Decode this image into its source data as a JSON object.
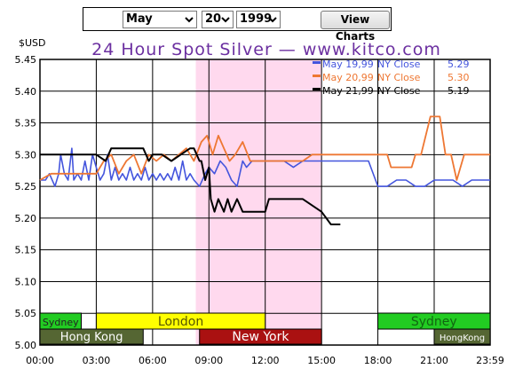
{
  "controls": {
    "month_value": "May",
    "day_value": "20",
    "year_value": "1999",
    "view_button": "View Charts"
  },
  "colors": {
    "ny_session_shade": "#ffd9ee",
    "title": "#6b2fa0",
    "series_1": "#4455dd",
    "series_2": "#ee7733",
    "series_3": "#000000",
    "sydney": "#22cc22",
    "london": "#ffff00",
    "hong_kong": "#556633",
    "new_york": "#aa1111"
  },
  "chart_data": {
    "type": "line",
    "title": "24 Hour Spot Silver — www.kitco.com",
    "ylabel": "$USD",
    "xlabel": "",
    "ylim": [
      5.0,
      5.45
    ],
    "y_ticks": [
      "5.45",
      "5.40",
      "5.35",
      "5.30",
      "5.25",
      "5.20",
      "5.15",
      "5.10",
      "5.05",
      "5.00"
    ],
    "x_ticks": [
      "00:00",
      "03:00",
      "06:00",
      "09:00",
      "12:00",
      "15:00",
      "18:00",
      "21:00",
      "23:59"
    ],
    "grid": true,
    "legend_position": "top-right",
    "legend": [
      {
        "date": "May 19,99",
        "label": "NY Close",
        "value": "5.29"
      },
      {
        "date": "May 20,99",
        "label": "NY Close",
        "value": "5.30"
      },
      {
        "date": "May 21,99",
        "label": "NY Close",
        "value": "5.19"
      }
    ],
    "series": [
      {
        "name": "May 19,99",
        "x": [
          0.0,
          0.3,
          0.5,
          0.8,
          1.0,
          1.1,
          1.3,
          1.5,
          1.7,
          1.8,
          2.0,
          2.2,
          2.4,
          2.6,
          2.8,
          3.0,
          3.2,
          3.4,
          3.6,
          3.8,
          4.0,
          4.2,
          4.4,
          4.6,
          4.8,
          5.0,
          5.2,
          5.4,
          5.6,
          5.8,
          6.0,
          6.2,
          6.4,
          6.6,
          6.8,
          7.0,
          7.2,
          7.4,
          7.6,
          7.8,
          8.0,
          8.2,
          8.5,
          8.8,
          9.0,
          9.3,
          9.6,
          9.9,
          10.2,
          10.5,
          10.8,
          11.0,
          11.3,
          11.6,
          12.0,
          12.5,
          13.0,
          13.5,
          14.0,
          14.5,
          15.0,
          15.5,
          16.0,
          16.5,
          17.0,
          17.5,
          18.0,
          18.5,
          19.0,
          19.5,
          20.0,
          20.5,
          21.0,
          21.5,
          22.0,
          22.5,
          23.0,
          23.5,
          23.98
        ],
        "values": [
          5.26,
          5.26,
          5.27,
          5.25,
          5.27,
          5.3,
          5.27,
          5.26,
          5.31,
          5.26,
          5.27,
          5.26,
          5.29,
          5.26,
          5.3,
          5.28,
          5.26,
          5.27,
          5.3,
          5.26,
          5.28,
          5.26,
          5.27,
          5.26,
          5.28,
          5.26,
          5.27,
          5.26,
          5.28,
          5.26,
          5.27,
          5.26,
          5.27,
          5.26,
          5.27,
          5.26,
          5.28,
          5.26,
          5.29,
          5.26,
          5.27,
          5.26,
          5.25,
          5.27,
          5.28,
          5.27,
          5.29,
          5.28,
          5.26,
          5.25,
          5.29,
          5.28,
          5.29,
          5.29,
          5.29,
          5.29,
          5.29,
          5.28,
          5.29,
          5.29,
          5.29,
          5.29,
          5.29,
          5.29,
          5.29,
          5.29,
          5.25,
          5.25,
          5.26,
          5.26,
          5.25,
          5.25,
          5.26,
          5.26,
          5.26,
          5.25,
          5.26,
          5.26,
          5.26
        ]
      },
      {
        "name": "May 20,99",
        "x": [
          0.0,
          0.6,
          1.0,
          2.0,
          3.0,
          3.4,
          3.8,
          4.2,
          4.6,
          5.0,
          5.4,
          5.8,
          6.2,
          6.6,
          7.0,
          7.4,
          7.8,
          8.2,
          8.6,
          8.9,
          9.2,
          9.5,
          9.8,
          10.1,
          10.4,
          10.8,
          11.2,
          12.0,
          13.0,
          14.0,
          14.5,
          15.0,
          16.0,
          17.0,
          18.0,
          18.5,
          18.7,
          19.0,
          19.5,
          19.8,
          20.0,
          20.3,
          20.8,
          21.3,
          21.6,
          21.9,
          22.2,
          22.6,
          23.0,
          23.5,
          23.98
        ],
        "values": [
          5.26,
          5.27,
          5.27,
          5.27,
          5.27,
          5.29,
          5.3,
          5.27,
          5.29,
          5.3,
          5.27,
          5.3,
          5.29,
          5.3,
          5.29,
          5.3,
          5.31,
          5.29,
          5.32,
          5.33,
          5.3,
          5.33,
          5.31,
          5.29,
          5.3,
          5.32,
          5.29,
          5.29,
          5.29,
          5.29,
          5.3,
          5.3,
          5.3,
          5.3,
          5.3,
          5.3,
          5.28,
          5.28,
          5.28,
          5.28,
          5.3,
          5.3,
          5.36,
          5.36,
          5.3,
          5.3,
          5.26,
          5.3,
          5.3,
          5.3,
          5.3
        ]
      },
      {
        "name": "May 21,99",
        "x": [
          0.0,
          1.0,
          2.0,
          3.0,
          3.5,
          3.8,
          4.0,
          5.0,
          5.5,
          5.8,
          6.0,
          6.5,
          7.0,
          7.5,
          8.0,
          8.2,
          8.5,
          8.6,
          8.8,
          9.0,
          9.1,
          9.3,
          9.5,
          9.8,
          10.0,
          10.2,
          10.5,
          10.8,
          11.0,
          11.2,
          12.0,
          12.2,
          12.5,
          13.0,
          14.0,
          15.0,
          15.5,
          16.0
        ],
        "values": [
          5.3,
          5.3,
          5.3,
          5.3,
          5.29,
          5.31,
          5.31,
          5.31,
          5.31,
          5.29,
          5.3,
          5.3,
          5.29,
          5.3,
          5.31,
          5.31,
          5.29,
          5.29,
          5.26,
          5.28,
          5.23,
          5.21,
          5.23,
          5.21,
          5.23,
          5.21,
          5.23,
          5.21,
          5.21,
          5.21,
          5.21,
          5.23,
          5.23,
          5.23,
          5.23,
          5.21,
          5.19,
          5.19
        ]
      }
    ],
    "sessions": [
      {
        "label": "Sydney",
        "row": "upper",
        "start": 0.0,
        "end": 2.2,
        "color": "#22cc22",
        "text": "#222222",
        "size": 11
      },
      {
        "label": "London",
        "row": "upper",
        "start": 3.0,
        "end": 12.0,
        "color": "#ffff00",
        "text": "#555500",
        "size": 14
      },
      {
        "label": "Sydney",
        "row": "upper",
        "start": 18.0,
        "end": 23.98,
        "color": "#22cc22",
        "text": "#116611",
        "size": 14
      },
      {
        "label": "Hong Kong",
        "row": "lower",
        "start": 0.0,
        "end": 5.5,
        "color": "#556633",
        "text": "#ffffff",
        "size": 13
      },
      {
        "label": "New York",
        "row": "lower",
        "start": 8.5,
        "end": 15.0,
        "color": "#aa1111",
        "text": "#ffffff",
        "size": 14
      },
      {
        "label": "HongKong",
        "row": "lower",
        "start": 21.0,
        "end": 23.98,
        "color": "#556633",
        "text": "#ffffff",
        "size": 10
      }
    ],
    "shaded_window": {
      "start": 8.3,
      "end": 15.0
    }
  }
}
